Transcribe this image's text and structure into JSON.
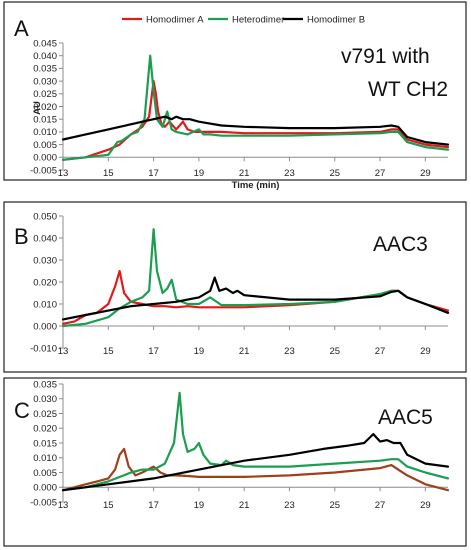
{
  "chart_data": [
    {
      "type": "line",
      "panel_label": "A",
      "title": "v791 with WT CH2",
      "xlabel": "Time (min)",
      "ylabel": "AU",
      "xlim": [
        13,
        30
      ],
      "ylim": [
        -0.005,
        0.045
      ],
      "xticks": [
        "13",
        "15",
        "17",
        "19",
        "21",
        "23",
        "25",
        "27",
        "29"
      ],
      "yticks": [
        "-0.005",
        "0.000",
        "0.005",
        "0.010",
        "0.015",
        "0.020",
        "0.025",
        "0.030",
        "0.035",
        "0.040",
        "0.045"
      ],
      "legend_position": "top",
      "series": [
        {
          "name": "Homodimer A",
          "color": "#e31a1c",
          "x": [
            13,
            14,
            15,
            15.5,
            16,
            16.5,
            16.8,
            17.0,
            17.1,
            17.2,
            17.35,
            17.5,
            17.7,
            18,
            18.3,
            18.5,
            18.8,
            19,
            20,
            21,
            23,
            25,
            27,
            27.5,
            27.8,
            28.2,
            29,
            30
          ],
          "y": [
            -0.001,
            0.0,
            0.003,
            0.005,
            0.009,
            0.012,
            0.016,
            0.03,
            0.025,
            0.018,
            0.013,
            0.012,
            0.014,
            0.011,
            0.014,
            0.011,
            0.01,
            0.01,
            0.01,
            0.0095,
            0.0095,
            0.0095,
            0.01,
            0.011,
            0.011,
            0.007,
            0.005,
            0.004
          ]
        },
        {
          "name": "Heterodimer",
          "color": "#1a9e50",
          "x": [
            13,
            14,
            15,
            15.4,
            15.6,
            16,
            16.3,
            16.6,
            16.85,
            17.0,
            17.15,
            17.4,
            17.6,
            17.8,
            18,
            18.5,
            19,
            19.2,
            19.5,
            20,
            21,
            23,
            25,
            27,
            27.5,
            27.8,
            28.2,
            29,
            30
          ],
          "y": [
            -0.001,
            0.0,
            0.001,
            0.006,
            0.0065,
            0.009,
            0.01,
            0.015,
            0.04,
            0.026,
            0.015,
            0.012,
            0.018,
            0.011,
            0.01,
            0.009,
            0.011,
            0.009,
            0.009,
            0.0085,
            0.0085,
            0.0085,
            0.009,
            0.0095,
            0.01,
            0.01,
            0.006,
            0.004,
            0.003
          ]
        },
        {
          "name": "Homodimer B",
          "color": "#000000",
          "x": [
            13,
            14,
            15,
            16,
            16.5,
            17,
            17.5,
            17.8,
            18,
            18.3,
            18.6,
            19,
            20,
            21,
            23,
            25,
            27,
            27.5,
            27.8,
            28.2,
            29,
            30
          ],
          "y": [
            0.007,
            0.009,
            0.011,
            0.013,
            0.014,
            0.015,
            0.016,
            0.015,
            0.016,
            0.015,
            0.015,
            0.014,
            0.0125,
            0.012,
            0.0115,
            0.0115,
            0.012,
            0.0125,
            0.012,
            0.008,
            0.006,
            0.005
          ]
        }
      ]
    },
    {
      "type": "line",
      "panel_label": "B",
      "title": "AAC3",
      "xlabel": "",
      "ylabel": "",
      "xlim": [
        13,
        30
      ],
      "ylim": [
        -0.01,
        0.05
      ],
      "xticks": [
        "13",
        "15",
        "17",
        "19",
        "21",
        "23",
        "25",
        "27",
        "29"
      ],
      "yticks": [
        "-0.010",
        "0.000",
        "0.010",
        "0.020",
        "0.030",
        "0.040",
        "0.050"
      ],
      "series": [
        {
          "color": "#e31a1c",
          "x": [
            13,
            13.5,
            14,
            14.5,
            15,
            15.3,
            15.5,
            15.7,
            16,
            16.5,
            17,
            17.5,
            18,
            18.5,
            19,
            20,
            21,
            23,
            25,
            27,
            27.5,
            27.8,
            28.2,
            29,
            30
          ],
          "y": [
            0.001,
            0.002,
            0.005,
            0.006,
            0.01,
            0.018,
            0.025,
            0.015,
            0.011,
            0.01,
            0.009,
            0.009,
            0.0085,
            0.009,
            0.0085,
            0.0085,
            0.0085,
            0.0095,
            0.011,
            0.0145,
            0.016,
            0.016,
            0.013,
            0.01,
            0.007
          ]
        },
        {
          "color": "#1a9e50",
          "x": [
            13,
            14,
            15,
            15.5,
            16,
            16.5,
            16.8,
            17.0,
            17.15,
            17.4,
            17.6,
            17.8,
            18,
            18.5,
            19,
            19.5,
            20,
            21,
            23,
            25,
            27,
            27.5,
            27.8,
            28.2,
            29,
            30
          ],
          "y": [
            0.0,
            0.001,
            0.004,
            0.008,
            0.011,
            0.013,
            0.016,
            0.044,
            0.025,
            0.015,
            0.017,
            0.021,
            0.012,
            0.01,
            0.01,
            0.013,
            0.0095,
            0.0095,
            0.01,
            0.011,
            0.0145,
            0.016,
            0.016,
            0.013,
            0.01,
            0.006
          ]
        },
        {
          "color": "#000000",
          "x": [
            13,
            14,
            15,
            16,
            17,
            18,
            18.5,
            19,
            19.5,
            19.7,
            19.9,
            20.2,
            20.5,
            20.7,
            21,
            23,
            25,
            27,
            27.5,
            27.8,
            28.2,
            29,
            30
          ],
          "y": [
            0.003,
            0.005,
            0.007,
            0.009,
            0.01,
            0.011,
            0.012,
            0.013,
            0.016,
            0.022,
            0.016,
            0.017,
            0.015,
            0.016,
            0.014,
            0.012,
            0.012,
            0.0135,
            0.0155,
            0.016,
            0.013,
            0.01,
            0.006
          ]
        }
      ]
    },
    {
      "type": "line",
      "panel_label": "C",
      "title": "AAC5",
      "xlabel": "",
      "ylabel": "",
      "xlim": [
        13,
        30
      ],
      "ylim": [
        -0.005,
        0.035
      ],
      "xticks": [
        "13",
        "15",
        "17",
        "19",
        "21",
        "23",
        "25",
        "27",
        "29"
      ],
      "yticks": [
        "-0.005",
        "0.000",
        "0.005",
        "0.010",
        "0.015",
        "0.020",
        "0.025",
        "0.030",
        "0.035"
      ],
      "series": [
        {
          "color": "#a0401a",
          "x": [
            13,
            13.5,
            14,
            14.5,
            15,
            15.3,
            15.5,
            15.7,
            15.9,
            16.2,
            16.5,
            17,
            17.3,
            17.6,
            18,
            18.5,
            19,
            20,
            21,
            23,
            25,
            27,
            27.5,
            27.8,
            28.2,
            29,
            30
          ],
          "y": [
            -0.001,
            0.0,
            0.001,
            0.002,
            0.003,
            0.006,
            0.011,
            0.013,
            0.007,
            0.004,
            0.005,
            0.007,
            0.005,
            0.004,
            0.004,
            0.0038,
            0.0035,
            0.0035,
            0.0035,
            0.004,
            0.005,
            0.0065,
            0.0075,
            0.006,
            0.004,
            0.001,
            -0.001
          ]
        },
        {
          "color": "#1a9e50",
          "x": [
            13,
            14,
            15,
            16,
            16.5,
            17,
            17.5,
            17.9,
            18.15,
            18.3,
            18.5,
            18.8,
            19.0,
            19.2,
            19.5,
            20,
            20.2,
            20.5,
            21,
            23,
            25,
            27,
            27.5,
            27.8,
            28.2,
            29,
            30
          ],
          "y": [
            -0.001,
            0.0,
            0.002,
            0.005,
            0.006,
            0.006,
            0.008,
            0.015,
            0.032,
            0.018,
            0.012,
            0.013,
            0.015,
            0.011,
            0.008,
            0.0075,
            0.009,
            0.0075,
            0.007,
            0.007,
            0.008,
            0.009,
            0.0095,
            0.0095,
            0.007,
            0.005,
            0.003
          ]
        },
        {
          "color": "#000000",
          "x": [
            13,
            15,
            17,
            19,
            21,
            23,
            24.5,
            25.5,
            26.3,
            26.7,
            27.0,
            27.3,
            27.6,
            27.9,
            28.2,
            29,
            30
          ],
          "y": [
            -0.001,
            0.001,
            0.003,
            0.006,
            0.009,
            0.011,
            0.013,
            0.014,
            0.015,
            0.018,
            0.0155,
            0.016,
            0.015,
            0.015,
            0.011,
            0.008,
            0.007
          ]
        }
      ]
    }
  ]
}
